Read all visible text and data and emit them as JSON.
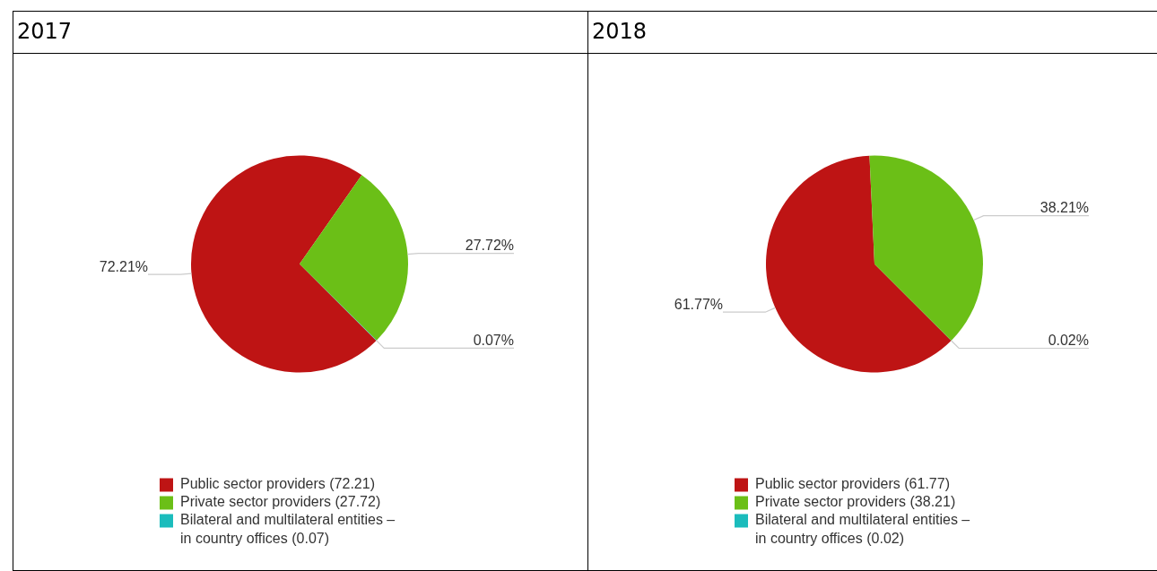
{
  "chart_data": [
    {
      "type": "pie",
      "title": "2017",
      "categories": [
        "Public sector providers (72.21)",
        "Private sector providers (27.72)",
        "Bilateral and multilateral entities – in country offices (0.07)"
      ],
      "values": [
        72.21,
        27.72,
        0.07
      ],
      "colors": [
        "#be1414",
        "#6bbf17",
        "#1bbcbc"
      ],
      "value_labels": [
        "72.21%",
        "27.72%",
        "0.07%"
      ],
      "legend": "bottom"
    },
    {
      "type": "pie",
      "title": "2018",
      "categories": [
        "Public sector providers (61.77)",
        "Private sector providers (38.21)",
        "Bilateral and multilateral entities – in country offices (0.02)"
      ],
      "values": [
        61.77,
        38.21,
        0.02
      ],
      "colors": [
        "#be1414",
        "#6bbf17",
        "#1bbcbc"
      ],
      "value_labels": [
        "61.77%",
        "38.21%",
        "0.02%"
      ],
      "legend": "bottom"
    }
  ]
}
